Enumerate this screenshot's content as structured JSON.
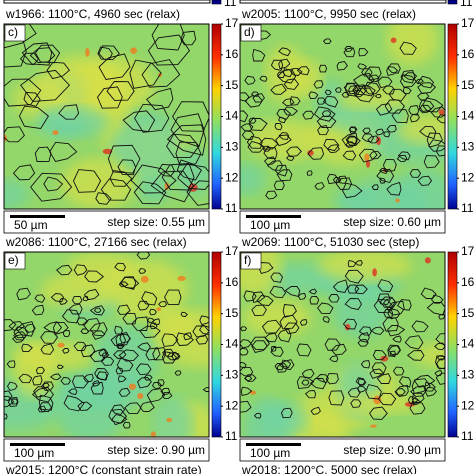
{
  "top_fragment": {
    "ticks": [
      11,
      11
    ]
  },
  "panels": [
    {
      "header": "w1966: 1100°C, 4960 sec (relax)",
      "label": "c)",
      "scale": "50 µm",
      "step": "step size: 0.55 µm",
      "colorbar_ticks": [
        17,
        16,
        15,
        14,
        13,
        12,
        11
      ]
    },
    {
      "header": "w2005: 1100°C, 9950 sec (relax)",
      "label": "d)",
      "scale": "100 µm",
      "step": "step size: 0.60 µm",
      "colorbar_ticks": [
        17,
        16,
        15,
        14,
        13,
        12,
        11
      ]
    },
    {
      "header": "w2086: 1100°C, 27166 sec (relax)",
      "label": "e)",
      "scale": "100 µm",
      "step": "step size: 0.90 µm",
      "colorbar_ticks": [
        17,
        16,
        15,
        14,
        13,
        12,
        11
      ]
    },
    {
      "header": "w2069: 1100°C, 51030 sec (step)",
      "label": "f)",
      "scale": "100 µm",
      "step": "step size: 0.90 µm",
      "colorbar_ticks": [
        17,
        16,
        15,
        14,
        13,
        12,
        11
      ]
    }
  ],
  "bottom_fragment": {
    "left": "w2015: 1200°C (constant strain rate)",
    "right": "w2018: 1200°C, 5000 sec (relax)"
  }
}
